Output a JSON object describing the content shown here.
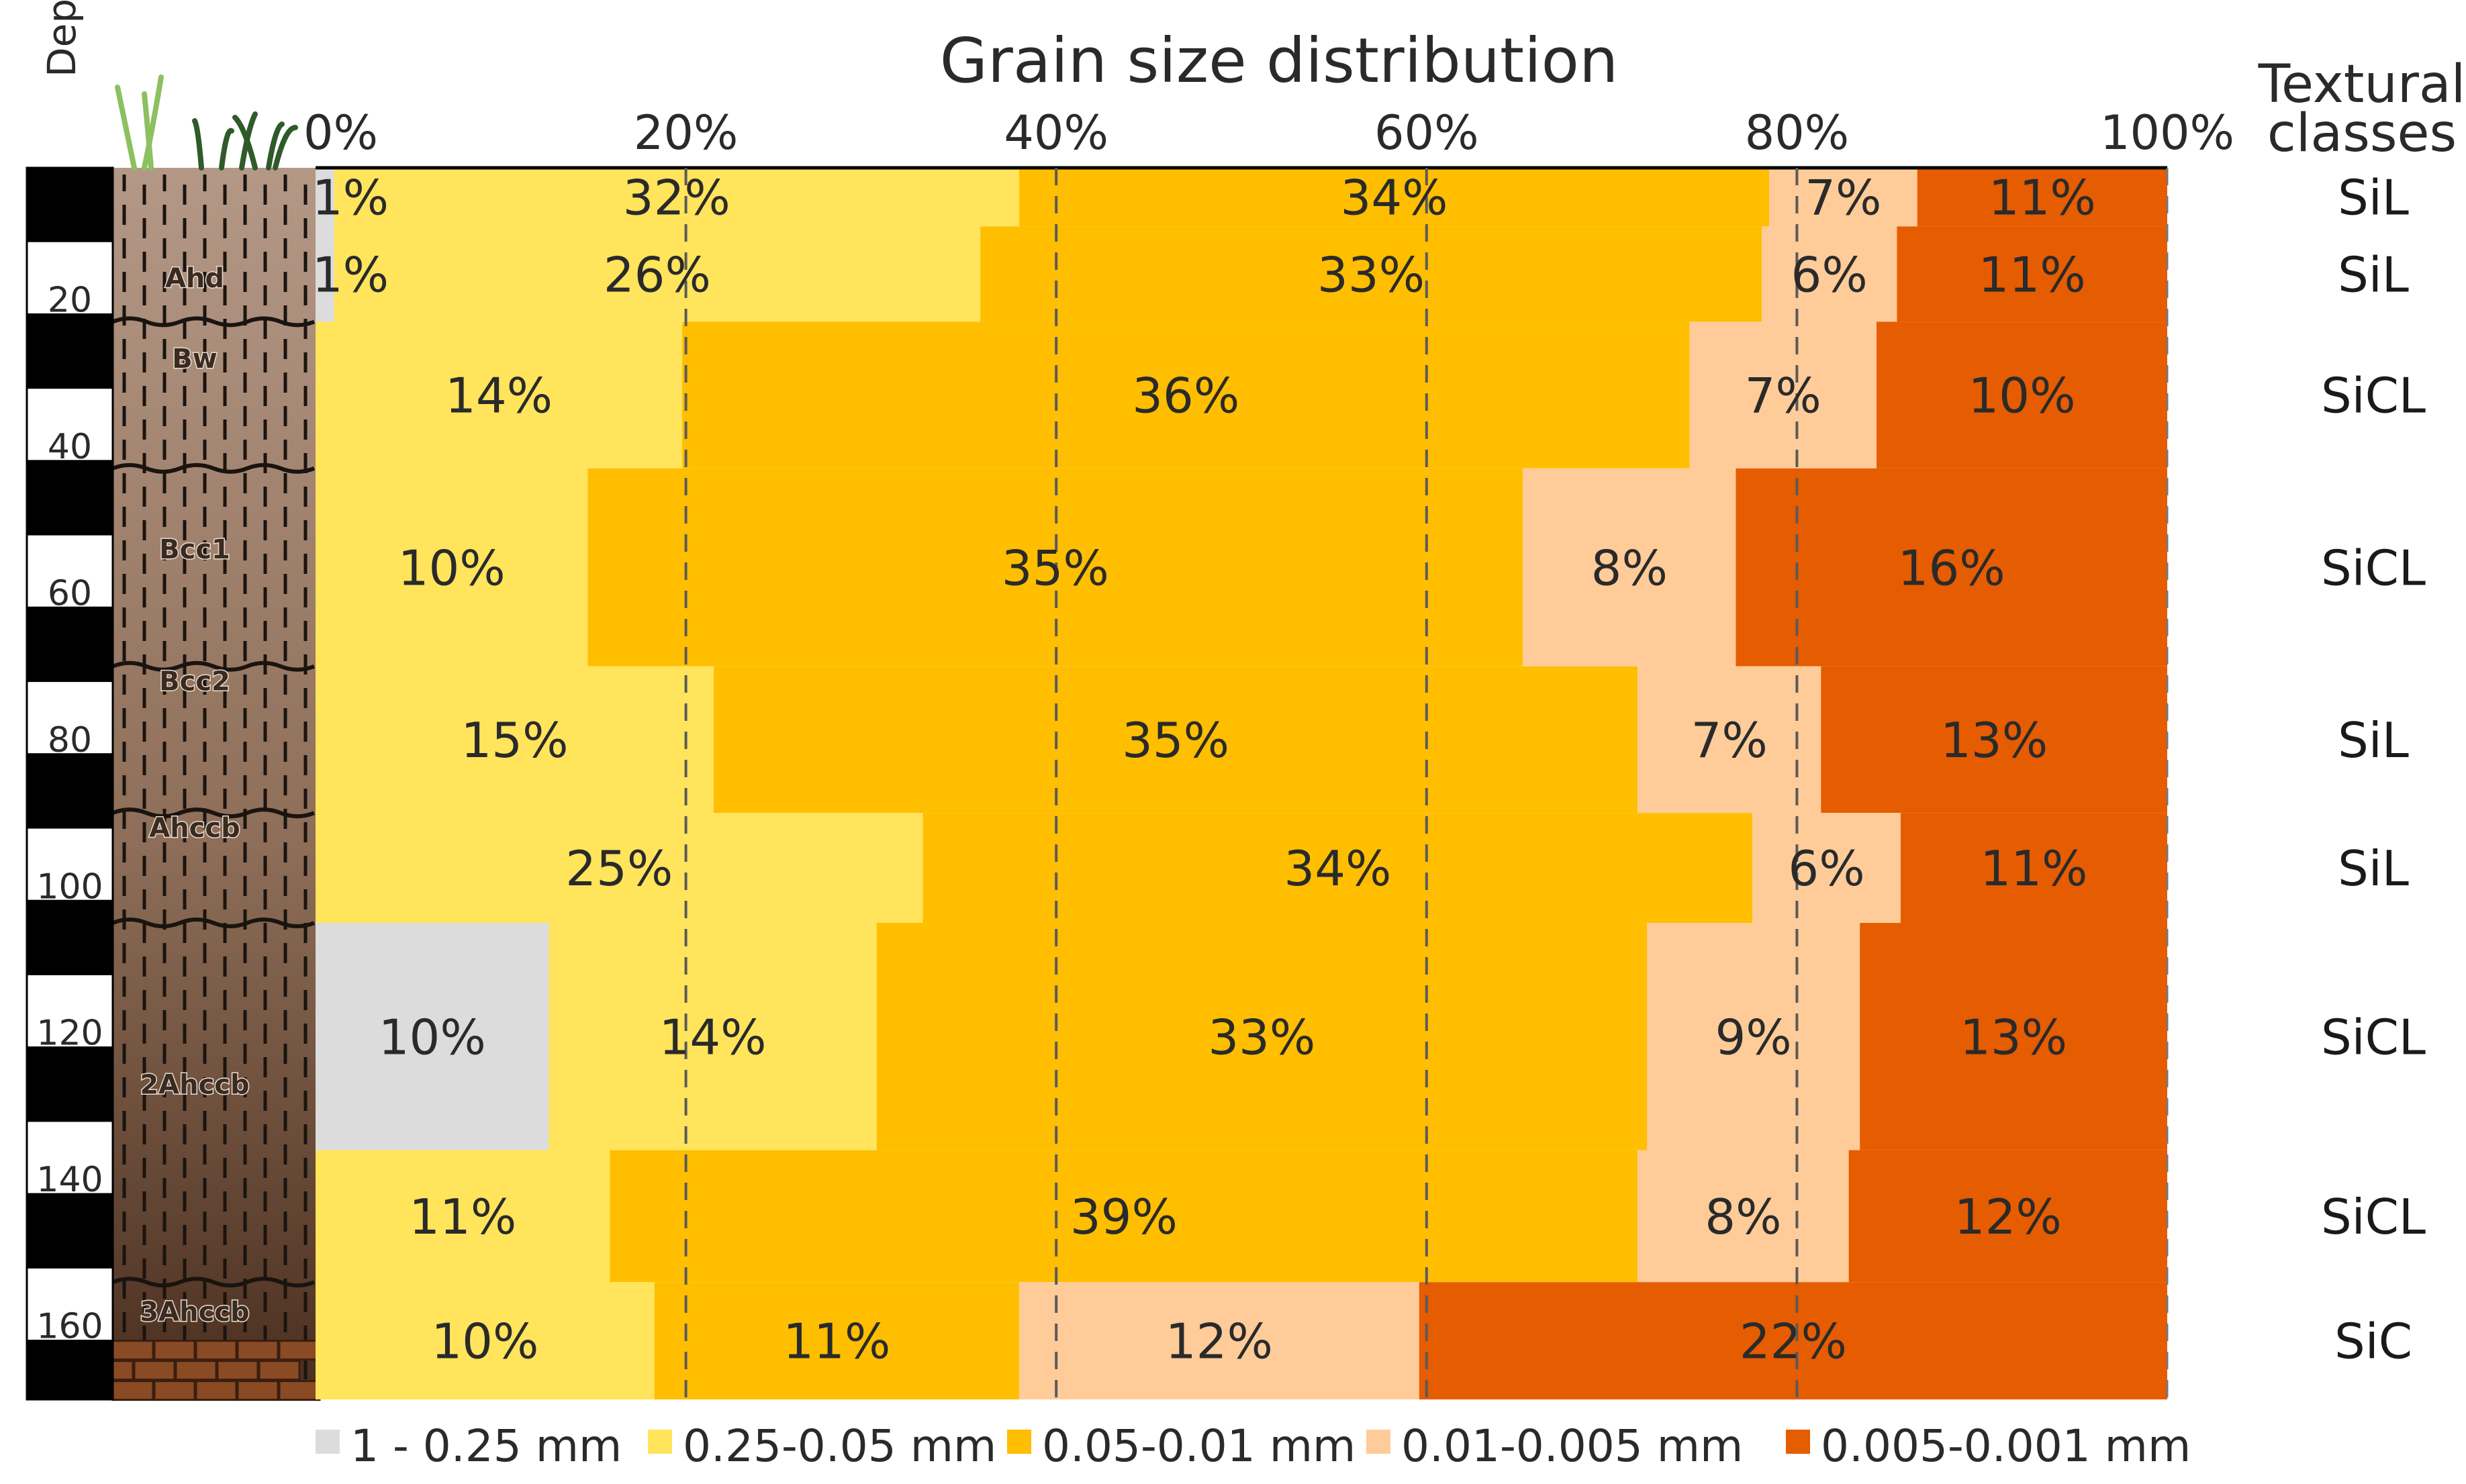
{
  "chart_data": {
    "type": "stacked-bar-horizontal",
    "title": "Grain size distribution",
    "depth_axis_label": "Depth, cm",
    "textural_header": [
      "Textural",
      "classes"
    ],
    "x_ticks": [
      "0%",
      "20%",
      "40%",
      "60%",
      "80%",
      "100%"
    ],
    "xlim": [
      0,
      100
    ],
    "depth_ticks": [
      "20",
      "40",
      "60",
      "80",
      "100",
      "120",
      "140",
      "160"
    ],
    "depth_range_cm": [
      0,
      168
    ],
    "categories": [
      {
        "name": "1 - 0.25 mm",
        "color": "#dcdcdc"
      },
      {
        "name": "0.25-0.05 mm",
        "color": "#ffe45c"
      },
      {
        "name": "0.05-0.01 mm",
        "color": "#ffbe00"
      },
      {
        "name": "0.01-0.005 mm",
        "color": "#ffcc99"
      },
      {
        "name": "0.005-0.001 mm",
        "color": "#e65c00"
      }
    ],
    "layers": [
      {
        "top": 0,
        "bottom": 8,
        "cum": [
          1.0,
          38.0,
          78.5,
          86.5,
          100
        ],
        "labels": [
          "1%",
          "32%",
          "34%",
          "7%",
          "11%"
        ],
        "textural": "SiL"
      },
      {
        "top": 8,
        "bottom": 21,
        "cum": [
          1.0,
          35.9,
          78.1,
          85.4,
          100
        ],
        "labels": [
          "1%",
          "26%",
          "33%",
          "6%",
          "11%"
        ],
        "textural": "SiL"
      },
      {
        "top": 21,
        "bottom": 41,
        "cum": [
          0,
          19.8,
          74.2,
          84.3,
          100
        ],
        "labels": [
          "",
          "14%",
          "36%",
          "7%",
          "10%"
        ],
        "textural": "SiCL"
      },
      {
        "top": 41,
        "bottom": 68,
        "cum": [
          0,
          14.7,
          65.2,
          76.7,
          100
        ],
        "labels": [
          "",
          "10%",
          "35%",
          "8%",
          "16%"
        ],
        "textural": "SiCL"
      },
      {
        "top": 68,
        "bottom": 88,
        "cum": [
          0,
          21.5,
          71.4,
          81.3,
          100
        ],
        "labels": [
          "",
          "15%",
          "35%",
          "7%",
          "13%"
        ],
        "textural": "SiL"
      },
      {
        "top": 88,
        "bottom": 103,
        "cum": [
          0,
          32.8,
          77.6,
          85.6,
          100
        ],
        "labels": [
          "",
          "25%",
          "34%",
          "6%",
          "11%"
        ],
        "textural": "SiL"
      },
      {
        "top": 103,
        "bottom": 134,
        "cum": [
          12.6,
          30.3,
          71.9,
          83.4,
          100
        ],
        "labels": [
          "10%",
          "14%",
          "33%",
          "9%",
          "13%"
        ],
        "textural": "SiCL"
      },
      {
        "top": 134,
        "bottom": 152,
        "cum": [
          0,
          15.9,
          71.4,
          82.8,
          100
        ],
        "labels": [
          "",
          "11%",
          "39%",
          "8%",
          "12%"
        ],
        "textural": "SiCL"
      },
      {
        "top": 152,
        "bottom": 168,
        "cum": [
          0,
          18.3,
          38.0,
          59.6,
          100
        ],
        "labels": [
          "",
          "10%",
          "11%",
          "12%",
          "22%"
        ],
        "textural": "SiC"
      }
    ],
    "horizons": [
      {
        "name": "Ahd",
        "depth": 15
      },
      {
        "name": "Bw",
        "depth": 26
      },
      {
        "name": "Bcc1",
        "depth": 52
      },
      {
        "name": "Bcc2",
        "depth": 70
      },
      {
        "name": "Ahccb",
        "depth": 90
      },
      {
        "name": "2Ahccb",
        "depth": 125
      },
      {
        "name": "3Ahccb",
        "depth": 156
      }
    ],
    "colors": {
      "column_soil": "#a88a74",
      "column_dark": "#5a3c2a",
      "gridline": "#555555",
      "border": "#000000"
    }
  }
}
